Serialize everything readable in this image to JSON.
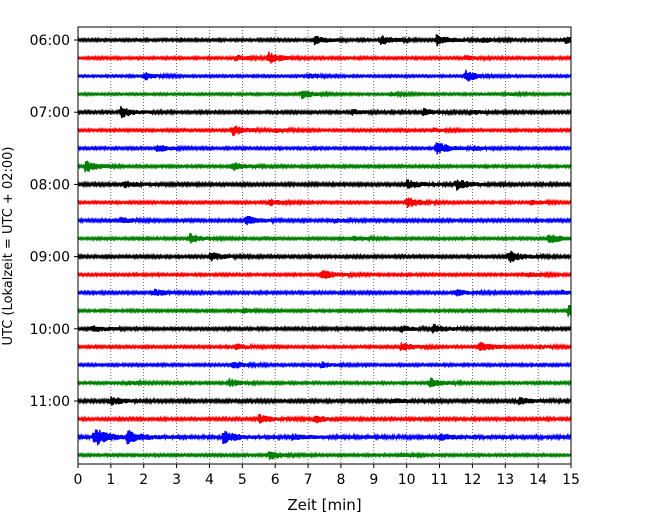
{
  "chart_data": {
    "type": "line",
    "title": "",
    "xlabel": "Zeit  [min]",
    "ylabel": "UTC (Lokalzeit = UTC + 02:00)",
    "xlim": [
      0,
      15
    ],
    "xticks": [
      "0",
      "1",
      "2",
      "3",
      "4",
      "5",
      "6",
      "7",
      "8",
      "9",
      "10",
      "11",
      "12",
      "13",
      "14",
      "15"
    ],
    "ytick_labels": [
      "06:00",
      "07:00",
      "08:00",
      "09:00",
      "10:00",
      "11:00"
    ],
    "grid": "vertical dotted",
    "trace_interval_min": 15,
    "start_time": "06:00",
    "colors_cycle": [
      "#000000",
      "#ff0000",
      "#0000ff",
      "#008000"
    ],
    "traces": [
      {
        "start": "06:00",
        "color": "#000000",
        "base": 0.9,
        "events": [
          [
            7.2,
            3.2
          ],
          [
            9.2,
            3.5
          ],
          [
            10.9,
            4.5
          ],
          [
            12.3,
            1.8
          ],
          [
            14.8,
            2.5
          ]
        ]
      },
      {
        "start": "06:15",
        "color": "#ff0000",
        "base": 0.9,
        "events": [
          [
            4.8,
            2.0
          ],
          [
            5.8,
            4.2
          ],
          [
            11.8,
            1.5
          ]
        ]
      },
      {
        "start": "06:30",
        "color": "#0000ff",
        "base": 0.8,
        "events": [
          [
            2.0,
            3.0
          ],
          [
            7.0,
            1.6
          ],
          [
            11.8,
            4.3
          ]
        ]
      },
      {
        "start": "06:45",
        "color": "#008000",
        "base": 0.8,
        "events": [
          [
            6.8,
            3.5
          ],
          [
            9.5,
            1.4
          ],
          [
            13.0,
            1.2
          ]
        ]
      },
      {
        "start": "07:00",
        "color": "#000000",
        "base": 1.0,
        "events": [
          [
            1.3,
            4.0
          ],
          [
            8.3,
            2.0
          ],
          [
            10.5,
            2.4
          ],
          [
            11.9,
            1.7
          ]
        ]
      },
      {
        "start": "07:15",
        "color": "#ff0000",
        "base": 0.9,
        "events": [
          [
            4.7,
            4.0
          ],
          [
            6.0,
            1.4
          ],
          [
            10.8,
            1.6
          ]
        ]
      },
      {
        "start": "07:30",
        "color": "#0000ff",
        "base": 0.9,
        "events": [
          [
            2.4,
            2.8
          ],
          [
            10.9,
            5.0
          ],
          [
            12.0,
            1.6
          ]
        ]
      },
      {
        "start": "07:45",
        "color": "#008000",
        "base": 0.9,
        "events": [
          [
            0.2,
            4.5
          ],
          [
            4.7,
            3.2
          ]
        ]
      },
      {
        "start": "08:00",
        "color": "#000000",
        "base": 1.1,
        "events": [
          [
            1.4,
            2.5
          ],
          [
            10.0,
            3.5
          ],
          [
            11.5,
            4.0
          ]
        ]
      },
      {
        "start": "08:15",
        "color": "#ff0000",
        "base": 0.9,
        "events": [
          [
            5.8,
            2.4
          ],
          [
            10.0,
            4.2
          ],
          [
            13.8,
            1.8
          ]
        ]
      },
      {
        "start": "08:30",
        "color": "#0000ff",
        "base": 1.0,
        "events": [
          [
            1.3,
            2.2
          ],
          [
            5.1,
            3.5
          ],
          [
            7.8,
            1.6
          ]
        ]
      },
      {
        "start": "08:45",
        "color": "#008000",
        "base": 0.9,
        "events": [
          [
            3.4,
            3.6
          ],
          [
            8.3,
            1.8
          ],
          [
            14.3,
            4.0
          ]
        ]
      },
      {
        "start": "09:00",
        "color": "#000000",
        "base": 1.0,
        "events": [
          [
            4.0,
            3.4
          ],
          [
            13.1,
            4.5
          ]
        ]
      },
      {
        "start": "09:15",
        "color": "#ff0000",
        "base": 0.9,
        "events": [
          [
            7.4,
            4.2
          ],
          [
            13.7,
            1.5
          ]
        ]
      },
      {
        "start": "09:30",
        "color": "#0000ff",
        "base": 1.0,
        "events": [
          [
            2.3,
            2.5
          ],
          [
            11.5,
            2.4
          ],
          [
            14.7,
            1.6
          ]
        ]
      },
      {
        "start": "09:45",
        "color": "#008000",
        "base": 0.9,
        "events": [
          [
            5.0,
            1.8
          ],
          [
            14.9,
            4.4
          ]
        ]
      },
      {
        "start": "10:00",
        "color": "#000000",
        "base": 1.0,
        "events": [
          [
            0.4,
            2.6
          ],
          [
            9.8,
            2.4
          ],
          [
            10.8,
            3.0
          ]
        ]
      },
      {
        "start": "10:15",
        "color": "#ff0000",
        "base": 0.9,
        "events": [
          [
            4.8,
            2.4
          ],
          [
            9.8,
            3.6
          ],
          [
            12.2,
            4.6
          ],
          [
            14.0,
            1.5
          ]
        ]
      },
      {
        "start": "10:30",
        "color": "#0000ff",
        "base": 0.9,
        "events": [
          [
            4.7,
            2.8
          ],
          [
            7.4,
            2.0
          ]
        ]
      },
      {
        "start": "10:45",
        "color": "#008000",
        "base": 0.9,
        "events": [
          [
            1.5,
            1.6
          ],
          [
            4.6,
            3.0
          ],
          [
            10.7,
            3.6
          ]
        ]
      },
      {
        "start": "11:00",
        "color": "#000000",
        "base": 1.1,
        "events": [
          [
            1.0,
            3.0
          ],
          [
            9.6,
            1.6
          ],
          [
            13.4,
            2.6
          ]
        ]
      },
      {
        "start": "11:15",
        "color": "#ff0000",
        "base": 1.0,
        "events": [
          [
            5.5,
            3.4
          ],
          [
            7.2,
            3.0
          ]
        ]
      },
      {
        "start": "11:30",
        "color": "#0000ff",
        "base": 1.3,
        "events": [
          [
            0.5,
            7.0
          ],
          [
            1.5,
            5.0
          ],
          [
            4.4,
            4.8
          ],
          [
            6.5,
            2.0
          ],
          [
            11.0,
            2.6
          ]
        ]
      },
      {
        "start": "11:45",
        "color": "#008000",
        "base": 0.9,
        "events": [
          [
            5.8,
            3.4
          ],
          [
            9.8,
            1.6
          ]
        ]
      }
    ]
  }
}
